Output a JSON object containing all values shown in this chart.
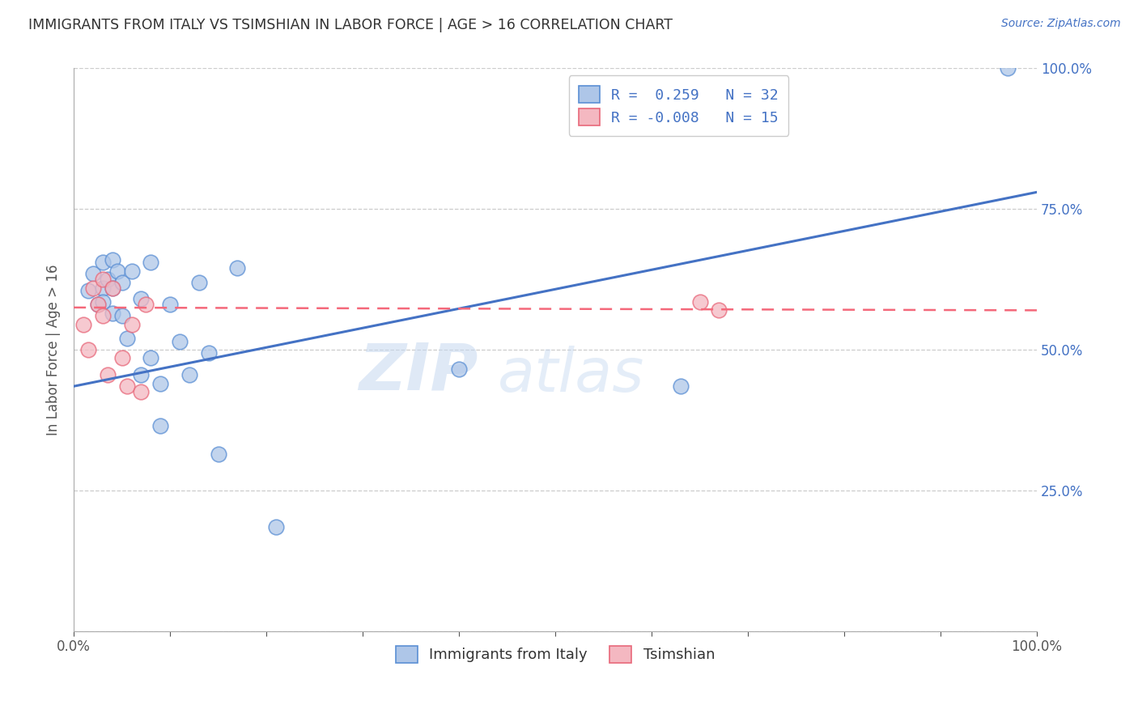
{
  "title": "IMMIGRANTS FROM ITALY VS TSIMSHIAN IN LABOR FORCE | AGE > 16 CORRELATION CHART",
  "source": "Source: ZipAtlas.com",
  "ylabel": "In Labor Force | Age > 16",
  "xlim": [
    0,
    1
  ],
  "ylim": [
    0,
    1
  ],
  "legend_italy_R": "0.259",
  "legend_italy_N": "32",
  "legend_tsimshian_R": "-0.008",
  "legend_tsimshian_N": "15",
  "legend_label_italy": "Immigrants from Italy",
  "legend_label_tsimshian": "Tsimshian",
  "italy_color": "#aec6e8",
  "tsimshian_color": "#f4b8c1",
  "italy_edge_color": "#5b8fd4",
  "tsimshian_edge_color": "#e8687a",
  "italy_line_color": "#4472c4",
  "tsimshian_line_color": "#f4687a",
  "watermark_zip": "ZIP",
  "watermark_atlas": "atlas",
  "background_color": "#ffffff",
  "grid_color": "#cccccc",
  "italy_x": [
    0.015,
    0.02,
    0.025,
    0.03,
    0.03,
    0.03,
    0.035,
    0.04,
    0.04,
    0.04,
    0.045,
    0.05,
    0.05,
    0.055,
    0.06,
    0.07,
    0.07,
    0.08,
    0.08,
    0.09,
    0.09,
    0.1,
    0.11,
    0.12,
    0.13,
    0.14,
    0.15,
    0.17,
    0.21,
    0.4,
    0.63,
    0.97
  ],
  "italy_y": [
    0.605,
    0.635,
    0.58,
    0.655,
    0.61,
    0.585,
    0.625,
    0.66,
    0.61,
    0.565,
    0.64,
    0.62,
    0.56,
    0.52,
    0.64,
    0.59,
    0.455,
    0.655,
    0.485,
    0.44,
    0.365,
    0.58,
    0.515,
    0.455,
    0.62,
    0.495,
    0.315,
    0.645,
    0.185,
    0.465,
    0.435,
    1.0
  ],
  "tsimshian_x": [
    0.01,
    0.015,
    0.02,
    0.025,
    0.03,
    0.03,
    0.035,
    0.04,
    0.05,
    0.055,
    0.06,
    0.07,
    0.075,
    0.65,
    0.67
  ],
  "tsimshian_y": [
    0.545,
    0.5,
    0.61,
    0.58,
    0.625,
    0.56,
    0.455,
    0.61,
    0.485,
    0.435,
    0.545,
    0.425,
    0.58,
    0.585,
    0.57
  ],
  "italy_trend_x": [
    0.0,
    1.0
  ],
  "italy_trend_y": [
    0.435,
    0.78
  ],
  "tsimshian_trend_x": [
    0.0,
    1.0
  ],
  "tsimshian_trend_y": [
    0.575,
    0.57
  ],
  "title_color": "#333333",
  "source_color": "#4472c4",
  "axis_label_color": "#555555",
  "right_axis_color": "#4472c4",
  "bottom_axis_color": "#555555",
  "legend_text_color": "#4472c4"
}
